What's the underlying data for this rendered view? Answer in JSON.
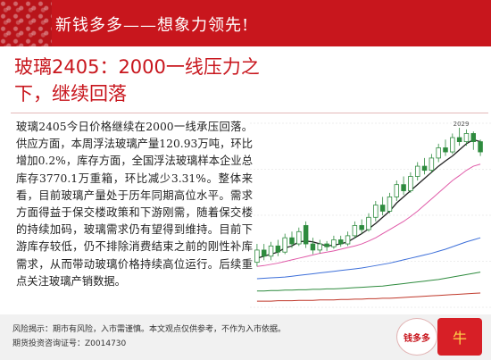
{
  "header": {
    "title": "新钱多多——想象力领先!"
  },
  "headline": {
    "text": "玻璃2405：2000一线压力之下，继续回落"
  },
  "article": {
    "body": "玻璃2405今日价格继续在2000一线承压回落。供应方面，本周浮法玻璃产量120.93万吨，环比增加0.2%，库存方面，全国浮法玻璃样本企业总库存3770.1万重箱，环比减少3.31%。整体来看，目前玻璃产量处于历年同期高位水平。需求方面得益于保交楼政策和下游刚需，随着保交楼的持续加码，玻璃需求仍有望得到维持。目前下游库存较低，仍不排除消费结束之前的刚性补库需求，从而带动玻璃价格持续高位运行。后续重点关注玻璃产销数据。"
  },
  "chart_data": {
    "type": "candlestick",
    "annotation": "2029",
    "candles": [
      {
        "o": 1700,
        "c": 1730,
        "h": 1745,
        "l": 1690
      },
      {
        "o": 1730,
        "c": 1715,
        "h": 1745,
        "l": 1705
      },
      {
        "o": 1715,
        "c": 1740,
        "h": 1750,
        "l": 1705
      },
      {
        "o": 1740,
        "c": 1725,
        "h": 1755,
        "l": 1715
      },
      {
        "o": 1725,
        "c": 1760,
        "h": 1770,
        "l": 1720
      },
      {
        "o": 1760,
        "c": 1745,
        "h": 1775,
        "l": 1735
      },
      {
        "o": 1745,
        "c": 1775,
        "h": 1785,
        "l": 1740
      },
      {
        "o": 1790,
        "c": 1745,
        "h": 1800,
        "l": 1735
      },
      {
        "o": 1745,
        "c": 1730,
        "h": 1760,
        "l": 1720
      },
      {
        "o": 1730,
        "c": 1745,
        "h": 1755,
        "l": 1722
      },
      {
        "o": 1745,
        "c": 1738,
        "h": 1752,
        "l": 1728
      },
      {
        "o": 1738,
        "c": 1755,
        "h": 1765,
        "l": 1733
      },
      {
        "o": 1755,
        "c": 1745,
        "h": 1765,
        "l": 1738
      },
      {
        "o": 1745,
        "c": 1765,
        "h": 1775,
        "l": 1740
      },
      {
        "o": 1765,
        "c": 1790,
        "h": 1800,
        "l": 1758
      },
      {
        "o": 1790,
        "c": 1780,
        "h": 1805,
        "l": 1770
      },
      {
        "o": 1780,
        "c": 1810,
        "h": 1820,
        "l": 1775
      },
      {
        "o": 1810,
        "c": 1840,
        "h": 1850,
        "l": 1800
      },
      {
        "o": 1840,
        "c": 1825,
        "h": 1860,
        "l": 1815
      },
      {
        "o": 1825,
        "c": 1860,
        "h": 1870,
        "l": 1820
      },
      {
        "o": 1860,
        "c": 1890,
        "h": 1900,
        "l": 1850
      },
      {
        "o": 1890,
        "c": 1875,
        "h": 1910,
        "l": 1865
      },
      {
        "o": 1875,
        "c": 1910,
        "h": 1920,
        "l": 1870
      },
      {
        "o": 1910,
        "c": 1935,
        "h": 1945,
        "l": 1900
      },
      {
        "o": 1935,
        "c": 1925,
        "h": 1955,
        "l": 1915
      },
      {
        "o": 1925,
        "c": 1955,
        "h": 1965,
        "l": 1918
      },
      {
        "o": 1955,
        "c": 1980,
        "h": 1990,
        "l": 1945
      },
      {
        "o": 1980,
        "c": 1970,
        "h": 2000,
        "l": 1960
      },
      {
        "o": 1970,
        "c": 2005,
        "h": 2015,
        "l": 1965
      },
      {
        "o": 2005,
        "c": 1995,
        "h": 2029,
        "l": 1985
      },
      {
        "o": 1995,
        "c": 2015,
        "h": 2025,
        "l": 1985
      },
      {
        "o": 2015,
        "c": 1995,
        "h": 2020,
        "l": 1975
      },
      {
        "o": 1995,
        "c": 1970,
        "h": 2000,
        "l": 1960
      }
    ],
    "moving_averages": [
      {
        "name": "MA5",
        "color": "#222222",
        "values": [
          1710,
          1715,
          1720,
          1725,
          1735,
          1740,
          1750,
          1752,
          1750,
          1745,
          1740,
          1742,
          1745,
          1750,
          1760,
          1770,
          1782,
          1795,
          1810,
          1825,
          1845,
          1860,
          1875,
          1890,
          1905,
          1920,
          1935,
          1948,
          1960,
          1975,
          1990,
          2000,
          1995
        ]
      },
      {
        "name": "MA10",
        "color": "#e05aa8",
        "values": [
          1690,
          1692,
          1695,
          1698,
          1702,
          1706,
          1710,
          1714,
          1718,
          1722,
          1725,
          1728,
          1732,
          1736,
          1740,
          1745,
          1752,
          1760,
          1770,
          1780,
          1790,
          1800,
          1812,
          1825,
          1840,
          1855,
          1870,
          1885,
          1900,
          1912,
          1925,
          1935,
          1940
        ]
      },
      {
        "name": "MA20",
        "color": "#3d6fd9",
        "values": [
          1660,
          1661,
          1662,
          1663,
          1664,
          1666,
          1668,
          1670,
          1672,
          1674,
          1676,
          1678,
          1680,
          1682,
          1684,
          1686,
          1689,
          1692,
          1695,
          1698,
          1702,
          1706,
          1710,
          1714,
          1718,
          1722,
          1727,
          1732,
          1738,
          1744,
          1750,
          1755,
          1760
        ]
      },
      {
        "name": "MA40",
        "color": "#2e8b3e",
        "values": [
          1630,
          1630,
          1631,
          1631,
          1632,
          1632,
          1633,
          1633,
          1634,
          1634,
          1635,
          1635,
          1636,
          1637,
          1638,
          1639,
          1640,
          1641,
          1642,
          1644,
          1646,
          1648,
          1650,
          1652,
          1654,
          1656,
          1658,
          1661,
          1664,
          1667,
          1670,
          1673,
          1676
        ]
      },
      {
        "name": "MA60",
        "color": "#c0392b",
        "values": [
          1605,
          1605,
          1605,
          1606,
          1606,
          1606,
          1607,
          1607,
          1607,
          1608,
          1608,
          1608,
          1609,
          1609,
          1610,
          1610,
          1611,
          1611,
          1612,
          1612,
          1613,
          1614,
          1615,
          1616,
          1617,
          1618,
          1619,
          1620,
          1621,
          1622,
          1623,
          1624,
          1625
        ]
      }
    ],
    "colors": {
      "up": "#ffffff",
      "up_border": "#2e8b3e",
      "down": "#2e8b3e",
      "grid": "#dddddd"
    },
    "ylim": [
      1590,
      2040
    ]
  },
  "footer": {
    "risk": "风险揭示：期市有风险，入市需谨慎。本文观点仅供参考，不作为入市依据。",
    "license": "期货投资咨询证号：Z0014730"
  },
  "badges": {
    "money_badge": "钱多多",
    "mascot": "牛"
  },
  "colors": {
    "brand_red": "#c8161d"
  }
}
